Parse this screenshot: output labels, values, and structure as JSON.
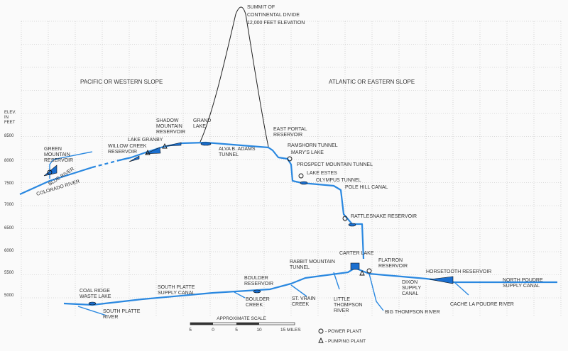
{
  "summit": [
    "SUMMIT OF",
    "CONTINENTAL DIVIDE",
    "12,000 FEET ELEVATION"
  ],
  "slopes": {
    "western": "PACIFIC OR WESTERN SLOPE",
    "eastern": "ATLANTIC OR EASTERN SLOPE"
  },
  "elevation_axis": {
    "title": [
      "ELEV.",
      "IN",
      "FEET"
    ],
    "labels": [
      "8500",
      "8000",
      "7500",
      "7000",
      "6500",
      "6000",
      "5500",
      "5000"
    ]
  },
  "labels": [
    {
      "lines": [
        "GREEN",
        "MOUNTAIN",
        "RESERVOIR"
      ]
    },
    {
      "lines": [
        "BLUE RIVER"
      ]
    },
    {
      "lines": [
        "COLORADO RIVER"
      ]
    },
    {
      "lines": [
        "WILLOW CREEK",
        "RESERVOIR"
      ]
    },
    {
      "lines": [
        "LAKE GRANBY"
      ]
    },
    {
      "lines": [
        "SHADOW",
        "MOUNTAIN",
        "RESERVOIR"
      ]
    },
    {
      "lines": [
        "GRAND",
        "LAKE"
      ]
    },
    {
      "lines": [
        "ALVA B. ADAMS",
        "TUNNEL"
      ]
    },
    {
      "lines": [
        "EAST PORTAL",
        "RESERVOIR"
      ]
    },
    {
      "lines": [
        "RAMSHORN TUNNEL"
      ]
    },
    {
      "lines": [
        "MARY'S LAKE"
      ]
    },
    {
      "lines": [
        "PROSPECT MOUNTAIN TUNNEL"
      ]
    },
    {
      "lines": [
        "LAKE ESTES"
      ]
    },
    {
      "lines": [
        "OLYMPUS TUNNEL"
      ]
    },
    {
      "lines": [
        "POLE HILL CANAL"
      ]
    },
    {
      "lines": [
        "RATTLESNAKE RESERVOIR"
      ]
    },
    {
      "lines": [
        "CARTER LAKE"
      ]
    },
    {
      "lines": [
        "RABBIT MOUNTAIN",
        "TUNNEL"
      ]
    },
    {
      "lines": [
        "FLATIRON",
        "RESERVOIR"
      ]
    },
    {
      "lines": [
        "HORSETOOTH RESERVOIR"
      ]
    },
    {
      "lines": [
        "DIXON",
        "SUPPLY",
        "CANAL"
      ]
    },
    {
      "lines": [
        "NORTH POUDRE",
        "SUPPLY CANAL"
      ]
    },
    {
      "lines": [
        "CACHE LA POUDRE RIVER"
      ]
    },
    {
      "lines": [
        "BIG THOMPSON RIVER"
      ]
    },
    {
      "lines": [
        "LITTLE",
        "THOMPSON",
        "RIVER"
      ]
    },
    {
      "lines": [
        "ST. VRAIN",
        "CREEK"
      ]
    },
    {
      "lines": [
        "BOULDER",
        "CREEK"
      ]
    },
    {
      "lines": [
        "BOULDER",
        "RESERVOIR"
      ]
    },
    {
      "lines": [
        "SOUTH PLATTE",
        "SUPPLY CANAL"
      ]
    },
    {
      "lines": [
        "COAL RIDGE",
        "WASTE LAKE"
      ]
    },
    {
      "lines": [
        "SOUTH PLATTE",
        "RIVER"
      ]
    }
  ],
  "scale": {
    "title": "APPROXIMATE SCALE",
    "ticks": [
      "5",
      "0",
      "5",
      "10",
      "15 MILES"
    ]
  },
  "legend": {
    "power_plant": "- POWER PLANT",
    "pumping_plant": "- PUMPING PLANT"
  }
}
